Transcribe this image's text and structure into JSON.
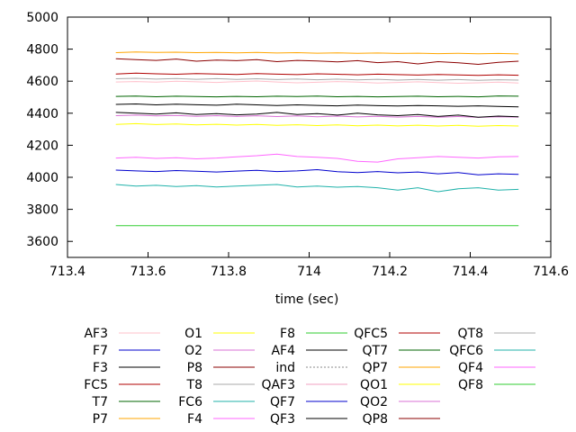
{
  "chart_data": {
    "type": "line",
    "title": "",
    "xlabel": "time (sec)",
    "ylabel": "",
    "xlim": [
      713.4,
      714.6
    ],
    "ylim": [
      3500,
      5000
    ],
    "xticks": [
      713.4,
      713.6,
      713.8,
      714,
      714.2,
      714.4,
      714.6
    ],
    "xtick_labels": [
      "713.4",
      "713.6",
      "713.8",
      "714",
      "714.2",
      "714.4",
      "714.6"
    ],
    "yticks": [
      3600,
      3800,
      4000,
      4200,
      4400,
      4600,
      4800,
      5000
    ],
    "ytick_labels": [
      "3600",
      "3800",
      "4000",
      "4200",
      "4400",
      "4600",
      "4800",
      "5000"
    ],
    "x_range": [
      713.52,
      714.52
    ],
    "grid": false,
    "legend_placement": "below",
    "series": [
      {
        "name": "AF3",
        "color": "#ffc0cb",
        "values": [
          4595,
          4598,
          4594,
          4600,
          4596,
          4592,
          4597,
          4601,
          4595,
          4590,
          4593,
          4598,
          4594,
          4589,
          4592,
          4596,
          4591,
          4587,
          4590,
          4594,
          4588
        ]
      },
      {
        "name": "F7",
        "color": "#0000cd",
        "values": [
          4045,
          4040,
          4036,
          4042,
          4038,
          4033,
          4039,
          4044,
          4036,
          4040,
          4048,
          4035,
          4030,
          4036,
          4028,
          4033,
          4022,
          4030,
          4015,
          4022,
          4018
        ]
      },
      {
        "name": "F3",
        "color": "#000000",
        "values": [
          4455,
          4458,
          4452,
          4456,
          4453,
          4450,
          4456,
          4452,
          4448,
          4452,
          4449,
          4446,
          4451,
          4447,
          4445,
          4448,
          4446,
          4443,
          4446,
          4442,
          4440
        ]
      },
      {
        "name": "FC5",
        "color": "#b00000",
        "values": [
          4645,
          4650,
          4646,
          4643,
          4648,
          4645,
          4642,
          4647,
          4644,
          4641,
          4646,
          4643,
          4640,
          4644,
          4641,
          4638,
          4642,
          4639,
          4636,
          4640,
          4637
        ]
      },
      {
        "name": "T7",
        "color": "#006400",
        "values": [
          4505,
          4507,
          4503,
          4506,
          4504,
          4502,
          4505,
          4503,
          4506,
          4504,
          4507,
          4503,
          4505,
          4502,
          4504,
          4506,
          4503,
          4505,
          4502,
          4508,
          4506
        ]
      },
      {
        "name": "P7",
        "color": "#ffa500",
        "values": [
          4778,
          4782,
          4779,
          4781,
          4778,
          4780,
          4777,
          4779,
          4776,
          4778,
          4775,
          4777,
          4774,
          4776,
          4773,
          4775,
          4772,
          4774,
          4771,
          4773,
          4770
        ]
      },
      {
        "name": "O1",
        "color": "#ffff00",
        "values": [
          4330,
          4335,
          4329,
          4333,
          4327,
          4331,
          4326,
          4330,
          4324,
          4328,
          4323,
          4327,
          4322,
          4326,
          4321,
          4325,
          4320,
          4324,
          4319,
          4323,
          4320
        ]
      },
      {
        "name": "O2",
        "color": "#da70d6",
        "values": [
          4385,
          4388,
          4383,
          4386,
          4381,
          4385,
          4380,
          4384,
          4379,
          4383,
          4378,
          4382,
          4377,
          4381,
          4376,
          4380,
          4375,
          4379,
          4374,
          4378,
          4376
        ]
      },
      {
        "name": "P8",
        "color": "#8b0000",
        "values": [
          4740,
          4735,
          4730,
          4738,
          4725,
          4732,
          4728,
          4735,
          4722,
          4730,
          4726,
          4720,
          4728,
          4716,
          4722,
          4708,
          4722,
          4715,
          4705,
          4718,
          4725
        ]
      },
      {
        "name": "T8",
        "color": "#aaaaaa",
        "values": [
          4615,
          4618,
          4613,
          4617,
          4612,
          4616,
          4611,
          4615,
          4610,
          4614,
          4609,
          4613,
          4608,
          4612,
          4607,
          4611,
          4606,
          4610,
          4605,
          4609,
          4607
        ]
      },
      {
        "name": "FC6",
        "color": "#20b2aa",
        "values": [
          3955,
          3945,
          3950,
          3942,
          3948,
          3940,
          3945,
          3950,
          3955,
          3940,
          3945,
          3938,
          3942,
          3935,
          3920,
          3935,
          3910,
          3928,
          3935,
          3920,
          3925
        ]
      },
      {
        "name": "F4",
        "color": "#ff66ff",
        "values": [
          4120,
          4125,
          4118,
          4122,
          4115,
          4120,
          4128,
          4135,
          4145,
          4130,
          4125,
          4118,
          4100,
          4095,
          4115,
          4122,
          4130,
          4125,
          4120,
          4128,
          4130
        ]
      },
      {
        "name": "F8",
        "color": "#32cd32",
        "values": [
          3698,
          3698,
          3698,
          3698,
          3698,
          3698,
          3698,
          3698,
          3698,
          3698,
          3698,
          3698,
          3698,
          3698,
          3698,
          3698,
          3698,
          3698,
          3698,
          3698,
          3698
        ]
      },
      {
        "name": "AF4",
        "color": "#000000",
        "values": [
          4405,
          4400,
          4395,
          4402,
          4392,
          4398,
          4390,
          4395,
          4405,
          4392,
          4398,
          4388,
          4400,
          4390,
          4385,
          4392,
          4380,
          4388,
          4375,
          4382,
          4378
        ]
      },
      {
        "name": "ind",
        "color": "#888888",
        "dash": true,
        "values": []
      },
      {
        "name": "QAF3",
        "color": "#f0a0c0",
        "values": []
      },
      {
        "name": "QF7",
        "color": "#0000cd",
        "values": []
      },
      {
        "name": "QF3",
        "color": "#000000",
        "values": []
      },
      {
        "name": "QFC5",
        "color": "#b00000",
        "values": []
      },
      {
        "name": "QT7",
        "color": "#006400",
        "values": []
      },
      {
        "name": "QP7",
        "color": "#ffa500",
        "values": []
      },
      {
        "name": "QO1",
        "color": "#ffff00",
        "values": []
      },
      {
        "name": "QO2",
        "color": "#da70d6",
        "values": []
      },
      {
        "name": "QP8",
        "color": "#8b0000",
        "values": []
      },
      {
        "name": "QT8",
        "color": "#aaaaaa",
        "values": []
      },
      {
        "name": "QFC6",
        "color": "#20b2aa",
        "values": []
      },
      {
        "name": "QF4",
        "color": "#ff66ff",
        "values": []
      },
      {
        "name": "QF8",
        "color": "#32cd32",
        "values": []
      }
    ]
  }
}
